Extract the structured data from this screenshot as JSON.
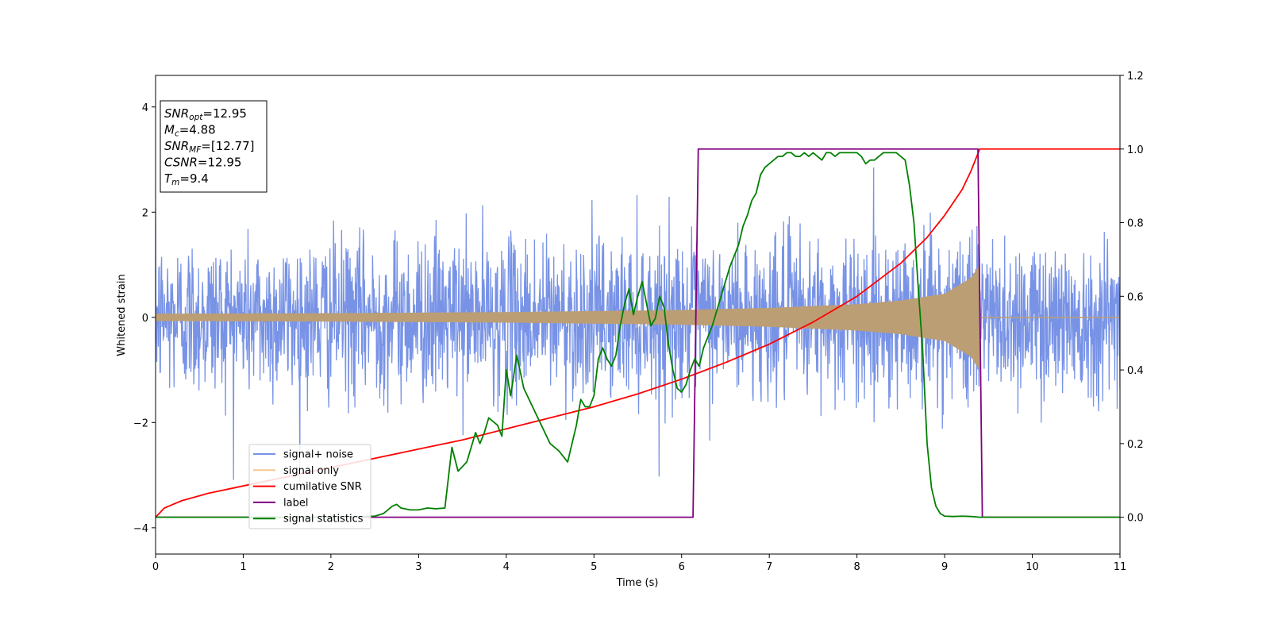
{
  "chart_data": {
    "type": "line",
    "xlabel": "Time (s)",
    "ylabel": "Whitened strain",
    "xlim": [
      0,
      11
    ],
    "ylim": [
      -4.5,
      4.6
    ],
    "y2lim": [
      -0.1,
      1.2
    ],
    "xticks": [
      0,
      1,
      2,
      3,
      4,
      5,
      6,
      7,
      8,
      9,
      10,
      11
    ],
    "yticks": [
      -4,
      -2,
      0,
      2,
      4
    ],
    "y2ticks": [
      0.0,
      0.2,
      0.4,
      0.6,
      0.8,
      1.0,
      1.2
    ],
    "grid": false,
    "legend_position": "lower-left",
    "annotation": {
      "lines": [
        {
          "base": "SNR",
          "sub": "opt",
          "rest": "=12.95"
        },
        {
          "base": "M",
          "sub": "c",
          "rest": "=4.88"
        },
        {
          "base": "SNR",
          "sub": "MF",
          "rest": "=[12.77]"
        },
        {
          "base": "CSNR",
          "sub": "",
          "rest": "=12.95"
        },
        {
          "base": "T",
          "sub": "m",
          "rest": "=9.4"
        }
      ]
    },
    "series": [
      {
        "name": "signal+ noise",
        "color": "#7893e6",
        "axis": "left",
        "kind": "noise",
        "noise_std": 0.75,
        "x_range": [
          0,
          11
        ]
      },
      {
        "name": "signal only",
        "color": "#f5c88a",
        "axis": "left",
        "kind": "chirp",
        "t_merger": 9.4,
        "envelope": [
          [
            0,
            0.07
          ],
          [
            2,
            0.08
          ],
          [
            4,
            0.1
          ],
          [
            6,
            0.14
          ],
          [
            7,
            0.18
          ],
          [
            8,
            0.25
          ],
          [
            8.5,
            0.32
          ],
          [
            9,
            0.45
          ],
          [
            9.3,
            0.75
          ],
          [
            9.4,
            1.0
          ]
        ]
      },
      {
        "name": "cumilative SNR",
        "color": "#ff0000",
        "axis": "right",
        "x": [
          0,
          0.1,
          0.3,
          0.6,
          1,
          1.5,
          2,
          2.5,
          3,
          3.5,
          4,
          4.5,
          5,
          5.5,
          6,
          6.5,
          7,
          7.5,
          8,
          8.5,
          8.8,
          9.0,
          9.2,
          9.3,
          9.4,
          9.5,
          10,
          11
        ],
        "y": [
          0.0,
          0.025,
          0.045,
          0.065,
          0.085,
          0.11,
          0.135,
          0.16,
          0.185,
          0.21,
          0.24,
          0.27,
          0.3,
          0.335,
          0.375,
          0.42,
          0.47,
          0.53,
          0.6,
          0.69,
          0.76,
          0.82,
          0.89,
          0.94,
          1.0,
          1.0,
          1.0,
          1.0
        ]
      },
      {
        "name": "label",
        "color": "#800080",
        "axis": "right",
        "x": [
          0,
          6.13,
          6.19,
          9.38,
          9.43,
          11
        ],
        "y": [
          0,
          0,
          1,
          1,
          0,
          0
        ]
      },
      {
        "name": "signal statistics",
        "color": "#008000",
        "axis": "right",
        "x": [
          0,
          0.5,
          1,
          1.5,
          2,
          2.5,
          2.6,
          2.7,
          2.75,
          2.8,
          2.9,
          3.0,
          3.1,
          3.2,
          3.3,
          3.38,
          3.45,
          3.55,
          3.65,
          3.7,
          3.75,
          3.8,
          3.9,
          3.95,
          4.0,
          4.05,
          4.12,
          4.2,
          4.3,
          4.4,
          4.5,
          4.6,
          4.7,
          4.75,
          4.8,
          4.85,
          4.9,
          4.95,
          5.0,
          5.05,
          5.1,
          5.15,
          5.2,
          5.25,
          5.3,
          5.35,
          5.4,
          5.45,
          5.5,
          5.55,
          5.6,
          5.65,
          5.7,
          5.75,
          5.8,
          5.85,
          5.9,
          5.95,
          6.0,
          6.05,
          6.1,
          6.15,
          6.2,
          6.25,
          6.3,
          6.35,
          6.4,
          6.45,
          6.5,
          6.55,
          6.6,
          6.65,
          6.7,
          6.75,
          6.8,
          6.85,
          6.9,
          6.95,
          7.0,
          7.05,
          7.1,
          7.15,
          7.2,
          7.25,
          7.3,
          7.35,
          7.4,
          7.45,
          7.5,
          7.55,
          7.6,
          7.65,
          7.7,
          7.75,
          7.8,
          7.85,
          7.9,
          7.95,
          8.0,
          8.05,
          8.1,
          8.15,
          8.2,
          8.25,
          8.3,
          8.35,
          8.4,
          8.45,
          8.5,
          8.55,
          8.6,
          8.65,
          8.7,
          8.75,
          8.8,
          8.85,
          8.9,
          8.95,
          9.0,
          9.1,
          9.2,
          9.3,
          9.4,
          10,
          11
        ],
        "y": [
          0.0,
          0.0,
          0.0,
          0.0,
          0.0,
          0.003,
          0.01,
          0.03,
          0.035,
          0.025,
          0.02,
          0.02,
          0.025,
          0.023,
          0.025,
          0.19,
          0.125,
          0.15,
          0.23,
          0.2,
          0.23,
          0.27,
          0.25,
          0.22,
          0.4,
          0.33,
          0.44,
          0.35,
          0.3,
          0.25,
          0.2,
          0.18,
          0.15,
          0.2,
          0.25,
          0.32,
          0.3,
          0.3,
          0.33,
          0.43,
          0.46,
          0.43,
          0.41,
          0.44,
          0.52,
          0.58,
          0.62,
          0.55,
          0.6,
          0.64,
          0.58,
          0.52,
          0.54,
          0.6,
          0.57,
          0.47,
          0.4,
          0.35,
          0.34,
          0.36,
          0.4,
          0.43,
          0.41,
          0.46,
          0.49,
          0.52,
          0.56,
          0.6,
          0.64,
          0.68,
          0.71,
          0.74,
          0.79,
          0.82,
          0.86,
          0.88,
          0.93,
          0.95,
          0.96,
          0.97,
          0.98,
          0.98,
          0.99,
          0.99,
          0.98,
          0.98,
          0.99,
          0.98,
          0.99,
          0.98,
          0.97,
          0.99,
          0.99,
          0.98,
          0.99,
          0.99,
          0.99,
          0.99,
          0.99,
          0.98,
          0.96,
          0.97,
          0.97,
          0.98,
          0.99,
          0.99,
          0.99,
          0.99,
          0.98,
          0.97,
          0.9,
          0.8,
          0.62,
          0.45,
          0.2,
          0.08,
          0.03,
          0.01,
          0.003,
          0.002,
          0.003,
          0.002,
          0.0,
          0.0,
          0.0
        ]
      }
    ]
  }
}
